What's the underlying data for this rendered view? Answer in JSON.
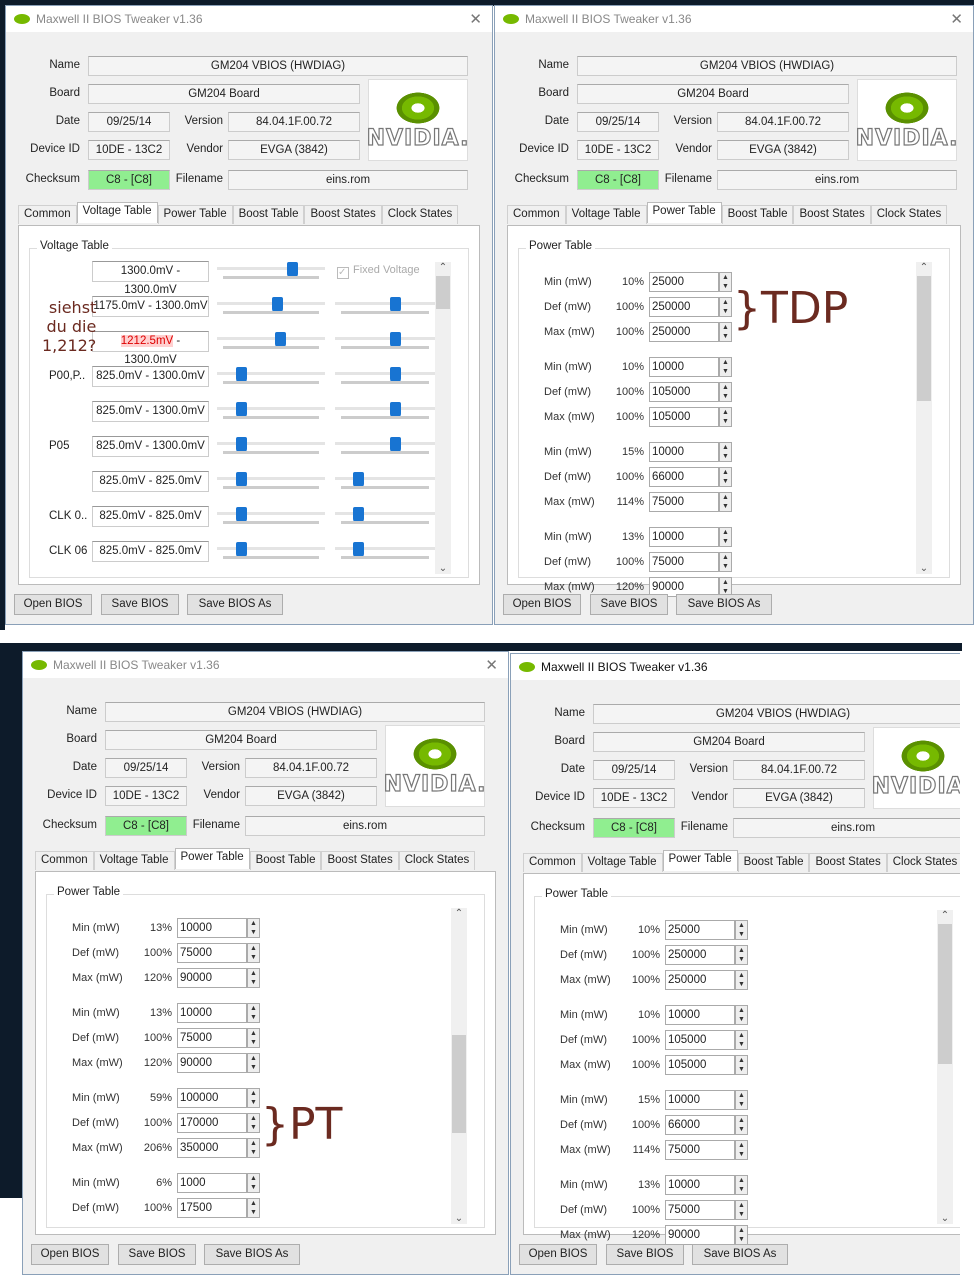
{
  "annotation_color": "#6b2a20",
  "windows": [
    {
      "title": "Maxwell II BIOS Tweaker v1.36",
      "active": false,
      "info": {
        "name_label": "Name",
        "name": "GM204 VBIOS (HWDIAG)",
        "board_label": "Board",
        "board": "GM204 Board",
        "date_label": "Date",
        "date": "09/25/14",
        "version_label": "Version",
        "version": "84.04.1F.00.72",
        "device_label": "Device ID",
        "device_id": "10DE - 13C2",
        "vendor_label": "Vendor",
        "vendor": "EVGA (3842)",
        "checksum_label": "Checksum",
        "checksum": "C8 - [C8]",
        "filename_label": "Filename",
        "filename": "eins.rom",
        "logo_text": "NVIDIA."
      },
      "tabs": [
        "Common",
        "Voltage Table",
        "Power Table",
        "Boost Table",
        "Boost States",
        "Clock States"
      ],
      "active_tab": 1,
      "panel": {
        "type": "voltage",
        "title": "Voltage Table",
        "fixed_voltage_label": "Fixed Voltage",
        "fixed_voltage_checked": true,
        "rows": [
          {
            "label": "",
            "range": "1300.0mV - 1300.0mV",
            "slider1": 0.72,
            "slider2": null
          },
          {
            "label": "",
            "range": "1175.0mV - 1300.0mV",
            "slider1": 0.57,
            "slider2": 0.62
          },
          {
            "label": "",
            "range_hl": "1212.5mV",
            "range": " - 1300.0mV",
            "slider1": 0.6,
            "slider2": 0.62
          },
          {
            "label": "P00,P..",
            "range": "825.0mV - 1300.0mV",
            "slider1": 0.2,
            "slider2": 0.62
          },
          {
            "label": "",
            "range": "825.0mV - 1300.0mV",
            "slider1": 0.2,
            "slider2": 0.62
          },
          {
            "label": "P05",
            "range": "825.0mV - 1300.0mV",
            "slider1": 0.2,
            "slider2": 0.62
          },
          {
            "label": "",
            "range": "825.0mV - 825.0mV",
            "slider1": 0.2,
            "slider2": 0.2
          },
          {
            "label": "CLK 0..",
            "range": "825.0mV - 825.0mV",
            "slider1": 0.2,
            "slider2": 0.2
          },
          {
            "label": "CLK 06",
            "range": "825.0mV - 825.0mV",
            "slider1": 0.2,
            "slider2": 0.2
          }
        ],
        "scroll": [
          0,
          0.12
        ]
      },
      "buttons": [
        "Open BIOS",
        "Save BIOS",
        "Save BIOS As"
      ],
      "annotation": [
        "siehst",
        "du die",
        "1,212?"
      ]
    },
    {
      "title": "Maxwell II BIOS Tweaker v1.36",
      "active": false,
      "info": {
        "name_label": "Name",
        "name": "GM204 VBIOS (HWDIAG)",
        "board_label": "Board",
        "board": "GM204 Board",
        "date_label": "Date",
        "date": "09/25/14",
        "version_label": "Version",
        "version": "84.04.1F.00.72",
        "device_label": "Device ID",
        "device_id": "10DE - 13C2",
        "vendor_label": "Vendor",
        "vendor": "EVGA (3842)",
        "checksum_label": "Checksum",
        "checksum": "C8 - [C8]",
        "filename_label": "Filename",
        "filename": "eins.rom",
        "logo_text": "NVIDIA."
      },
      "tabs": [
        "Common",
        "Voltage Table",
        "Power Table",
        "Boost Table",
        "Boost States",
        "Clock States"
      ],
      "active_tab": 2,
      "panel": {
        "type": "power",
        "title": "Power Table",
        "groups": [
          [
            {
              "label": "Min (mW)",
              "pct": "10%",
              "value": "25000"
            },
            {
              "label": "Def (mW)",
              "pct": "100%",
              "value": "250000"
            },
            {
              "label": "Max (mW)",
              "pct": "100%",
              "value": "250000"
            }
          ],
          [
            {
              "label": "Min (mW)",
              "pct": "10%",
              "value": "10000"
            },
            {
              "label": "Def (mW)",
              "pct": "100%",
              "value": "105000"
            },
            {
              "label": "Max (mW)",
              "pct": "100%",
              "value": "105000"
            }
          ],
          [
            {
              "label": "Min (mW)",
              "pct": "15%",
              "value": "10000"
            },
            {
              "label": "Def (mW)",
              "pct": "100%",
              "value": "66000"
            },
            {
              "label": "Max (mW)",
              "pct": "114%",
              "value": "75000"
            }
          ],
          [
            {
              "label": "Min (mW)",
              "pct": "13%",
              "value": "10000"
            },
            {
              "label": "Def (mW)",
              "pct": "100%",
              "value": "75000"
            },
            {
              "label": "Max (mW)",
              "pct": "120%",
              "value": "90000"
            }
          ]
        ],
        "scroll": [
          0,
          0.45
        ]
      },
      "buttons": [
        "Open BIOS",
        "Save BIOS",
        "Save BIOS As"
      ],
      "annotation": [
        "}TDP"
      ],
      "annotation_group": 0
    },
    {
      "title": "Maxwell II BIOS Tweaker v1.36",
      "active": false,
      "info": {
        "name_label": "Name",
        "name": "GM204 VBIOS (HWDIAG)",
        "board_label": "Board",
        "board": "GM204 Board",
        "date_label": "Date",
        "date": "09/25/14",
        "version_label": "Version",
        "version": "84.04.1F.00.72",
        "device_label": "Device ID",
        "device_id": "10DE - 13C2",
        "vendor_label": "Vendor",
        "vendor": "EVGA (3842)",
        "checksum_label": "Checksum",
        "checksum": "C8 - [C8]",
        "filename_label": "Filename",
        "filename": "eins.rom",
        "logo_text": "NVIDIA."
      },
      "tabs": [
        "Common",
        "Voltage Table",
        "Power Table",
        "Boost Table",
        "Boost States",
        "Clock States"
      ],
      "active_tab": 2,
      "panel": {
        "type": "power",
        "title": "Power Table",
        "groups": [
          [
            {
              "label": "Min (mW)",
              "pct": "13%",
              "value": "10000"
            },
            {
              "label": "Def (mW)",
              "pct": "100%",
              "value": "75000"
            },
            {
              "label": "Max (mW)",
              "pct": "120%",
              "value": "90000"
            }
          ],
          [
            {
              "label": "Min (mW)",
              "pct": "13%",
              "value": "10000"
            },
            {
              "label": "Def (mW)",
              "pct": "100%",
              "value": "75000"
            },
            {
              "label": "Max (mW)",
              "pct": "120%",
              "value": "90000"
            }
          ],
          [
            {
              "label": "Min (mW)",
              "pct": "59%",
              "value": "100000"
            },
            {
              "label": "Def (mW)",
              "pct": "100%",
              "value": "170000"
            },
            {
              "label": "Max (mW)",
              "pct": "206%",
              "value": "350000"
            }
          ],
          [
            {
              "label": "Min (mW)",
              "pct": "6%",
              "value": "1000"
            },
            {
              "label": "Def (mW)",
              "pct": "100%",
              "value": "17500"
            }
          ]
        ],
        "scroll": [
          0.4,
          0.75
        ]
      },
      "buttons": [
        "Open BIOS",
        "Save BIOS",
        "Save BIOS As"
      ],
      "annotation": [
        "}PT"
      ],
      "annotation_group": 2
    },
    {
      "title": "Maxwell II BIOS Tweaker v1.36",
      "active": true,
      "info": {
        "name_label": "Name",
        "name": "GM204 VBIOS (HWDIAG)",
        "board_label": "Board",
        "board": "GM204 Board",
        "date_label": "Date",
        "date": "09/25/14",
        "version_label": "Version",
        "version": "84.04.1F.00.72",
        "device_label": "Device ID",
        "device_id": "10DE - 13C2",
        "vendor_label": "Vendor",
        "vendor": "EVGA (3842)",
        "checksum_label": "Checksum",
        "checksum": "C8 - [C8]",
        "filename_label": "Filename",
        "filename": "eins.rom",
        "logo_text": "NVIDIA."
      },
      "tabs": [
        "Common",
        "Voltage Table",
        "Power Table",
        "Boost Table",
        "Boost States",
        "Clock States"
      ],
      "active_tab": 2,
      "panel": {
        "type": "power",
        "title": "Power Table",
        "groups": [
          [
            {
              "label": "Min (mW)",
              "pct": "10%",
              "value": "25000"
            },
            {
              "label": "Def (mW)",
              "pct": "100%",
              "value": "250000"
            },
            {
              "label": "Max (mW)",
              "pct": "100%",
              "value": "250000"
            }
          ],
          [
            {
              "label": "Min (mW)",
              "pct": "10%",
              "value": "10000"
            },
            {
              "label": "Def (mW)",
              "pct": "100%",
              "value": "105000"
            },
            {
              "label": "Max (mW)",
              "pct": "100%",
              "value": "105000"
            }
          ],
          [
            {
              "label": "Min (mW)",
              "pct": "15%",
              "value": "10000"
            },
            {
              "label": "Def (mW)",
              "pct": "100%",
              "value": "66000"
            },
            {
              "label": "Max (mW)",
              "pct": "114%",
              "value": "75000"
            }
          ],
          [
            {
              "label": "Min (mW)",
              "pct": "13%",
              "value": "10000"
            },
            {
              "label": "Def (mW)",
              "pct": "100%",
              "value": "75000"
            },
            {
              "label": "Max (mW)",
              "pct": "120%",
              "value": "90000"
            }
          ]
        ],
        "scroll": [
          0,
          0.5
        ]
      },
      "buttons": [
        "Open BIOS",
        "Save BIOS",
        "Save BIOS As"
      ]
    }
  ]
}
